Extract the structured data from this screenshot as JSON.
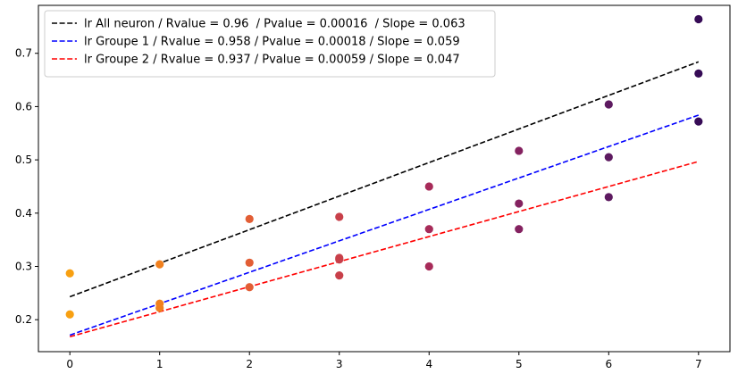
{
  "chart_data": {
    "type": "scatter",
    "title": "",
    "xlabel": "",
    "ylabel": "",
    "xlim": [
      -0.35,
      7.35
    ],
    "ylim": [
      0.14,
      0.79
    ],
    "x_ticks": [
      0,
      1,
      2,
      3,
      4,
      5,
      6,
      7
    ],
    "y_ticks": [
      0.2,
      0.3,
      0.4,
      0.5,
      0.6,
      0.7
    ],
    "grid": false,
    "legend_position": "top-left",
    "points": [
      {
        "x": 0,
        "y": 0.287,
        "color": "#f8a011"
      },
      {
        "x": 0,
        "y": 0.21,
        "color": "#f8a011"
      },
      {
        "x": 1,
        "y": 0.304,
        "color": "#f1801e"
      },
      {
        "x": 1,
        "y": 0.23,
        "color": "#f1801e"
      },
      {
        "x": 1,
        "y": 0.222,
        "color": "#f1801e"
      },
      {
        "x": 2,
        "y": 0.389,
        "color": "#e25e35"
      },
      {
        "x": 2,
        "y": 0.307,
        "color": "#e25e35"
      },
      {
        "x": 2,
        "y": 0.261,
        "color": "#e25e35"
      },
      {
        "x": 3,
        "y": 0.393,
        "color": "#c8404a"
      },
      {
        "x": 3,
        "y": 0.316,
        "color": "#c8404a"
      },
      {
        "x": 3,
        "y": 0.313,
        "color": "#c8404a"
      },
      {
        "x": 3,
        "y": 0.283,
        "color": "#c8404a"
      },
      {
        "x": 4,
        "y": 0.45,
        "color": "#a72b59"
      },
      {
        "x": 4,
        "y": 0.37,
        "color": "#a72b59"
      },
      {
        "x": 4,
        "y": 0.3,
        "color": "#a72b59"
      },
      {
        "x": 5,
        "y": 0.517,
        "color": "#842260"
      },
      {
        "x": 5,
        "y": 0.418,
        "color": "#842260"
      },
      {
        "x": 5,
        "y": 0.37,
        "color": "#842260"
      },
      {
        "x": 6,
        "y": 0.604,
        "color": "#5d1a60"
      },
      {
        "x": 6,
        "y": 0.505,
        "color": "#5d1a60"
      },
      {
        "x": 6,
        "y": 0.43,
        "color": "#5d1a60"
      },
      {
        "x": 7,
        "y": 0.764,
        "color": "#360b56"
      },
      {
        "x": 7,
        "y": 0.662,
        "color": "#360b56"
      },
      {
        "x": 7,
        "y": 0.572,
        "color": "#360b56"
      }
    ],
    "series": [
      {
        "name": "lr All neuron / Rvalue = 0.96  / Pvalue = 0.00016  / Slope = 0.063",
        "color": "#000000",
        "style": "dashed",
        "intercept": 0.243,
        "slope": 0.063,
        "x_range": [
          0,
          7
        ]
      },
      {
        "name": "lr Groupe 1 / Rvalue = 0.958 / Pvalue = 0.00018 / Slope = 0.059",
        "color": "#0000ff",
        "style": "dashed",
        "intercept": 0.171,
        "slope": 0.059,
        "x_range": [
          0,
          7
        ]
      },
      {
        "name": "lr Groupe 2 / Rvalue = 0.937 / Pvalue = 0.00059 / Slope = 0.047",
        "color": "#ff0000",
        "style": "dashed",
        "intercept": 0.168,
        "slope": 0.047,
        "x_range": [
          0,
          7
        ]
      }
    ]
  }
}
